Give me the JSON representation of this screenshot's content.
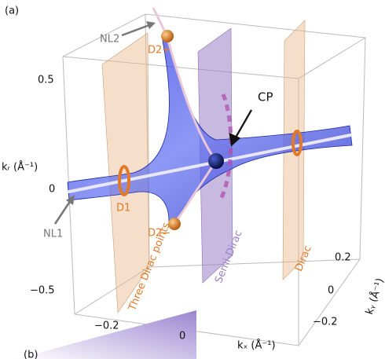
{
  "panel_label": "(a)",
  "next_panel_label": "(b)",
  "annotations": {
    "nl2": "NL2",
    "d2_plus": "D2+",
    "cp": "CP",
    "d1": "D1",
    "nl1": "NL1",
    "d2_minus": "D2−"
  },
  "planes": {
    "left": "Three Dirac points",
    "middle": "Semi-Dirac",
    "right": "Dirac"
  },
  "axes": {
    "kz": {
      "label": "kᵣ (Å⁻¹)",
      "ticks": [
        "0.5",
        "0",
        "−0.5"
      ]
    },
    "kx": {
      "label": "kₓ (Å⁻¹)",
      "ticks": [
        "−0.2",
        "0"
      ]
    },
    "ky": {
      "label": "kᵧ (Å⁻¹)",
      "ticks": [
        "0.2",
        "0",
        "−0.2"
      ]
    }
  }
}
